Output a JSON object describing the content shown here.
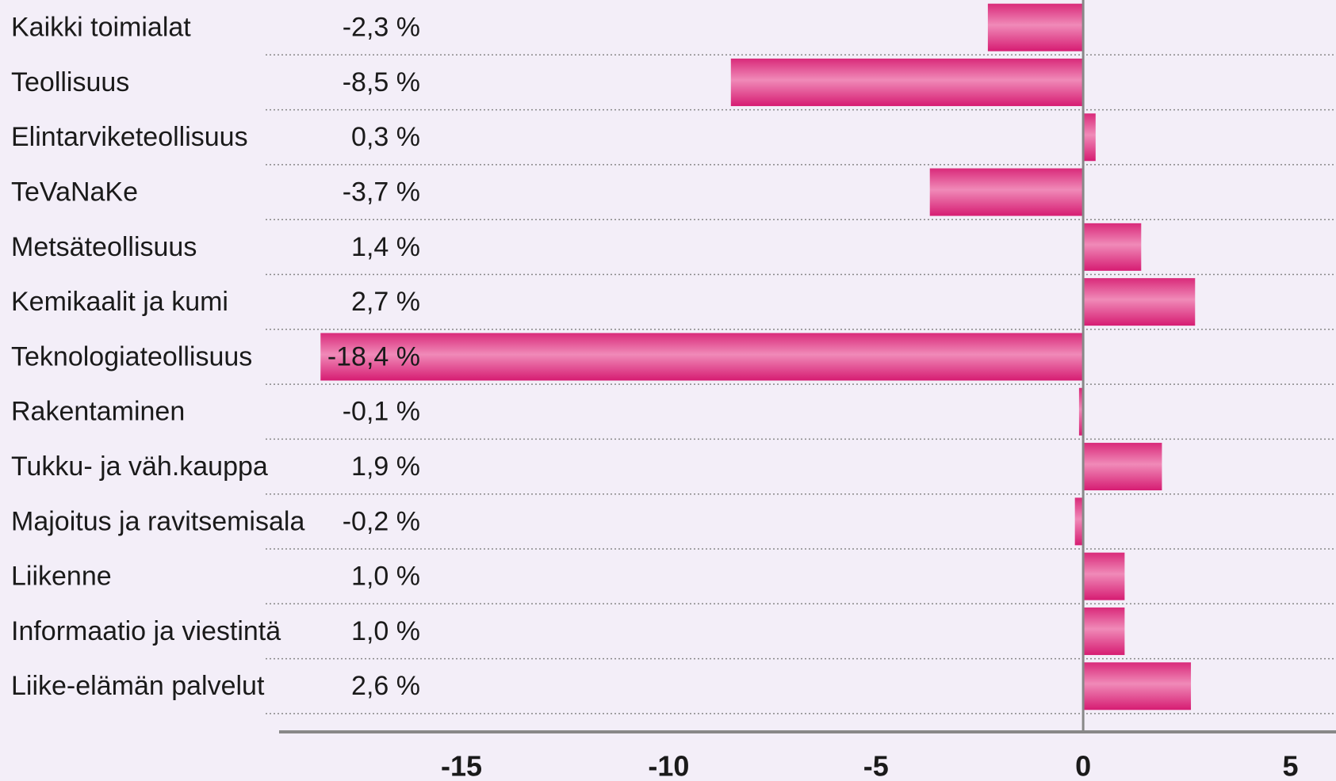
{
  "chart_data": {
    "type": "barh",
    "categories": [
      "Kaikki toimialat",
      "Teollisuus",
      "Elintarviketeollisuus",
      "TeVaNaKe",
      "Metsäteollisuus",
      "Kemikaalit ja kumi",
      "Teknologiateollisuus",
      "Rakentaminen",
      "Tukku- ja väh.kauppa",
      "Majoitus ja ravitsemisala",
      "Liikenne",
      "Informaatio ja viestintä",
      "Liike-elämän palvelut"
    ],
    "values": [
      -2.3,
      -8.5,
      0.3,
      -3.7,
      1.4,
      2.7,
      -18.4,
      -0.1,
      1.9,
      -0.2,
      1.0,
      1.0,
      2.6
    ],
    "value_labels": [
      "-2,3 %",
      "-8,5 %",
      "0,3 %",
      "-3,7 %",
      "1,4 %",
      "2,7 %",
      "-18,4 %",
      "-0,1 %",
      "1,9 %",
      "-0,2 %",
      "1,0 %",
      "1,0 %",
      "2,6 %"
    ],
    "color": "#e8418c",
    "xlim": [
      -19.4,
      6.1
    ],
    "xticks": [
      -15,
      -10,
      -5,
      0,
      5
    ]
  }
}
